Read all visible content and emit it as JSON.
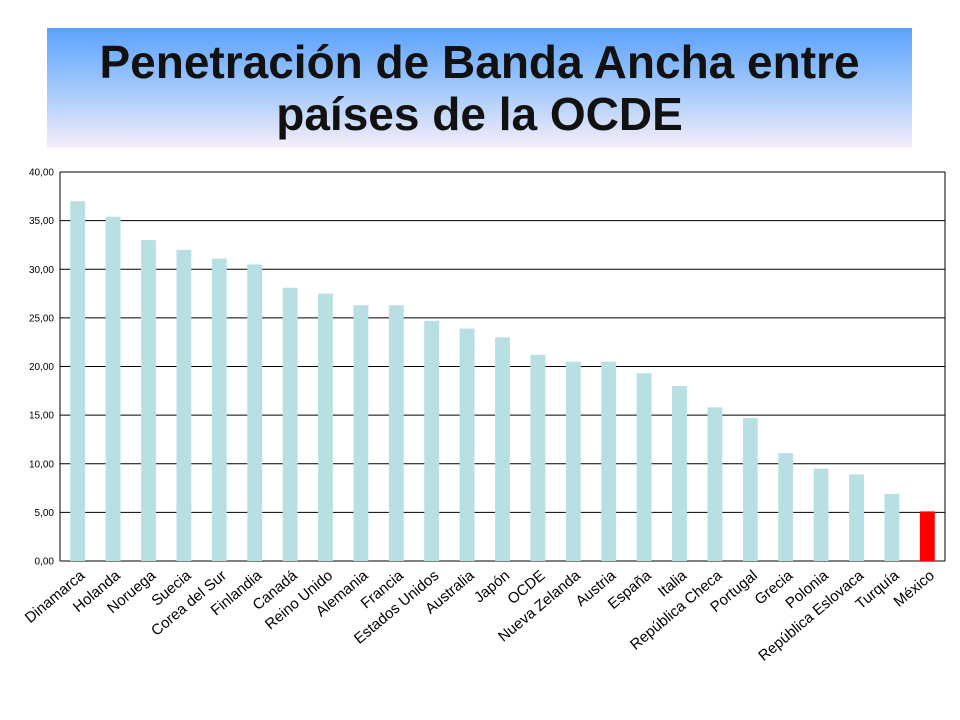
{
  "title": "Penetración de Banda Ancha entre países de la OCDE",
  "colors": {
    "bar": "#b8e0e3",
    "highlight": "#ff0000",
    "grid": "#000000"
  },
  "chart_data": {
    "type": "bar",
    "title": "Penetración de Banda Ancha entre países de la OCDE",
    "xlabel": "",
    "ylabel": "",
    "ylim": [
      0,
      40
    ],
    "yticks": [
      0,
      5,
      10,
      15,
      20,
      25,
      30,
      35,
      40
    ],
    "ytick_labels": [
      "0,00",
      "5,00",
      "10,00",
      "15,00",
      "20,00",
      "25,00",
      "30,00",
      "35,00",
      "40,00"
    ],
    "grid": true,
    "legend": "none",
    "highlight_category": "México",
    "categories": [
      "Dinamarca",
      "Holanda",
      "Noruega",
      "Suecia",
      "Corea del Sur",
      "Finlandia",
      "Canadá",
      "Reino Unido",
      "Alemania",
      "Francia",
      "Estados Unidos",
      "Australia",
      "Japón",
      "OCDE",
      "Nueva Zelanda",
      "Austria",
      "España",
      "Italia",
      "República Checa",
      "Portugal",
      "Grecia",
      "Polonia",
      "República Eslovaca",
      "Turquía",
      "México"
    ],
    "values": [
      37.0,
      35.4,
      33.0,
      32.0,
      31.1,
      30.5,
      28.1,
      27.5,
      26.3,
      26.3,
      24.7,
      23.9,
      23.0,
      21.2,
      20.5,
      20.5,
      19.3,
      18.0,
      15.8,
      14.7,
      11.1,
      9.5,
      8.9,
      6.9,
      5.1
    ]
  }
}
